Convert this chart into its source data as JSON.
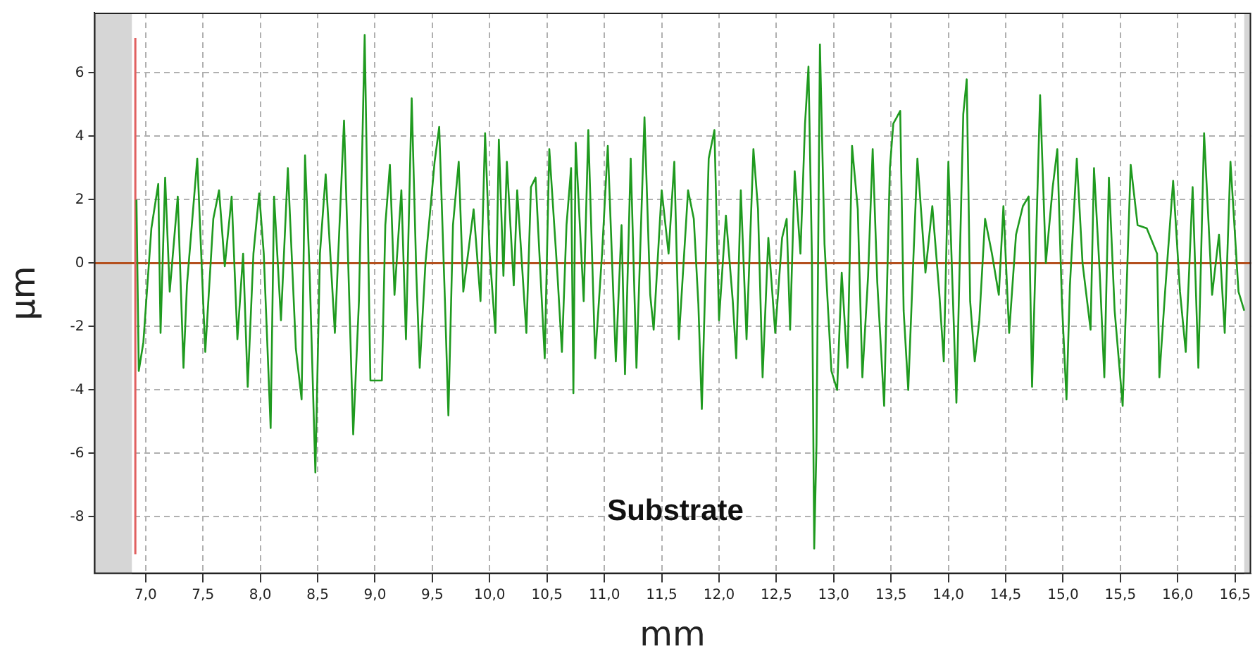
{
  "chart_data": {
    "type": "line",
    "xlabel": "mm",
    "ylabel": "µm",
    "annotations": [
      "Substrate"
    ],
    "xlim": [
      6.55,
      16.64
    ],
    "ylim": [
      -9.8,
      7.9
    ],
    "xticks": [
      {
        "value": 7,
        "label": "7,0"
      },
      {
        "value": 7.5,
        "label": "7,5"
      },
      {
        "value": 8,
        "label": "8,0"
      },
      {
        "value": 8.5,
        "label": "8,5"
      },
      {
        "value": 9,
        "label": "9,0"
      },
      {
        "value": 9.5,
        "label": "9,5"
      },
      {
        "value": 10,
        "label": "10,0"
      },
      {
        "value": 10.5,
        "label": "10,5"
      },
      {
        "value": 11,
        "label": "11,0"
      },
      {
        "value": 11.5,
        "label": "11,5"
      },
      {
        "value": 12,
        "label": "12,0"
      },
      {
        "value": 12.5,
        "label": "12,5"
      },
      {
        "value": 13,
        "label": "13,0"
      },
      {
        "value": 13.5,
        "label": "13,5"
      },
      {
        "value": 14,
        "label": "14,0"
      },
      {
        "value": 14.5,
        "label": "14,5"
      },
      {
        "value": 15,
        "label": "15,0"
      },
      {
        "value": 15.5,
        "label": "15,5"
      },
      {
        "value": 16,
        "label": "16,0"
      },
      {
        "value": 16.5,
        "label": "16,5"
      }
    ],
    "yticks": [
      -8,
      -6,
      -4,
      -2,
      0,
      2,
      4,
      6
    ],
    "grid": true,
    "legend": false,
    "marker": "none",
    "line_style": "solid",
    "ref_lines": [
      {
        "axis": "y",
        "value": 0,
        "color": "#b4501e"
      },
      {
        "axis": "x",
        "value": 6.91,
        "color": "#e06060"
      }
    ],
    "bands": [
      {
        "axis": "x",
        "from": 6.55,
        "to": 6.88,
        "color": "#d6d6d6"
      },
      {
        "axis": "x",
        "from": 16.58,
        "to": 16.64,
        "color": "#d6d6d6"
      }
    ],
    "series": [
      {
        "color": "#1f9a1f",
        "x": [
          6.92,
          6.94,
          6.98,
          7.05,
          7.11,
          7.13,
          7.17,
          7.21,
          7.28,
          7.33,
          7.36,
          7.45,
          7.52,
          7.59,
          7.64,
          7.69,
          7.75,
          7.8,
          7.85,
          7.89,
          7.94,
          7.99,
          8.03,
          8.09,
          8.12,
          8.18,
          8.24,
          8.31,
          8.36,
          8.39,
          8.43,
          8.48,
          8.52,
          8.57,
          8.65,
          8.73,
          8.81,
          8.86,
          8.91,
          8.96,
          9.06,
          9.09,
          9.13,
          9.17,
          9.23,
          9.27,
          9.32,
          9.36,
          9.39,
          9.44,
          9.52,
          9.56,
          9.61,
          9.64,
          9.68,
          9.73,
          9.77,
          9.86,
          9.92,
          9.96,
          10.0,
          10.05,
          10.08,
          10.12,
          10.15,
          10.21,
          10.24,
          10.32,
          10.36,
          10.4,
          10.48,
          10.52,
          10.59,
          10.63,
          10.67,
          10.71,
          10.73,
          10.75,
          10.82,
          10.86,
          10.92,
          10.98,
          11.03,
          11.1,
          11.15,
          11.18,
          11.23,
          11.28,
          11.35,
          11.4,
          11.43,
          11.5,
          11.56,
          11.61,
          11.65,
          11.73,
          11.78,
          11.82,
          11.85,
          11.91,
          11.96,
          12.0,
          12.06,
          12.12,
          12.15,
          12.19,
          12.24,
          12.3,
          12.34,
          12.38,
          12.43,
          12.49,
          12.55,
          12.59,
          12.62,
          12.66,
          12.71,
          12.75,
          12.78,
          12.81,
          12.83,
          12.85,
          12.88,
          12.92,
          12.98,
          13.03,
          13.07,
          13.12,
          13.16,
          13.21,
          13.25,
          13.3,
          13.34,
          13.38,
          13.44,
          13.49,
          13.52,
          13.58,
          13.61,
          13.65,
          13.69,
          13.73,
          13.8,
          13.86,
          13.92,
          13.96,
          14.0,
          14.07,
          14.13,
          14.16,
          14.19,
          14.23,
          14.27,
          14.32,
          14.38,
          14.44,
          14.48,
          14.53,
          14.59,
          14.65,
          14.7,
          14.73,
          14.8,
          14.85,
          14.91,
          14.95,
          14.99,
          15.03,
          15.06,
          15.12,
          15.17,
          15.24,
          15.27,
          15.32,
          15.36,
          15.4,
          15.45,
          15.52,
          15.59,
          15.65,
          15.73,
          15.82,
          15.84,
          15.89,
          15.96,
          16.02,
          16.07,
          16.13,
          16.18,
          16.23,
          16.3,
          16.36,
          16.41,
          16.46,
          16.53,
          16.58
        ],
        "values": [
          2.0,
          -3.4,
          -2.5,
          1.1,
          2.5,
          -2.2,
          2.7,
          -0.9,
          2.1,
          -3.3,
          -0.7,
          3.3,
          -2.8,
          1.4,
          2.3,
          -0.1,
          2.1,
          -2.4,
          0.3,
          -3.9,
          0.3,
          2.2,
          0.3,
          -5.2,
          2.1,
          -1.8,
          3.0,
          -2.7,
          -4.3,
          3.4,
          -0.3,
          -6.6,
          0.3,
          2.8,
          -2.2,
          4.5,
          -5.4,
          -1.2,
          7.2,
          -3.7,
          -3.7,
          1.2,
          3.1,
          -1.0,
          2.3,
          -2.4,
          5.2,
          -0.3,
          -3.3,
          0.0,
          3.2,
          4.3,
          -1.2,
          -4.8,
          1.2,
          3.2,
          -0.9,
          1.7,
          -1.2,
          4.1,
          0.3,
          -2.2,
          3.9,
          -0.4,
          3.2,
          -0.7,
          2.3,
          -2.2,
          2.4,
          2.7,
          -3.0,
          3.6,
          -0.3,
          -2.8,
          1.2,
          3.0,
          -4.1,
          3.8,
          -1.2,
          4.2,
          -3.0,
          0.3,
          3.7,
          -3.1,
          1.2,
          -3.5,
          3.3,
          -3.3,
          4.6,
          -1.0,
          -2.1,
          2.3,
          0.3,
          3.2,
          -2.4,
          2.3,
          1.4,
          -1.3,
          -4.6,
          3.3,
          4.2,
          -1.8,
          1.5,
          -1.2,
          -3.0,
          2.3,
          -2.4,
          3.6,
          1.7,
          -3.6,
          0.8,
          -2.2,
          0.8,
          1.4,
          -2.1,
          2.9,
          0.3,
          4.4,
          6.2,
          0.2,
          -9.0,
          -5.7,
          6.9,
          0.6,
          -3.4,
          -4.0,
          -0.3,
          -3.3,
          3.7,
          1.7,
          -3.6,
          -0.4,
          3.6,
          -0.6,
          -4.5,
          3.0,
          4.4,
          4.8,
          -1.5,
          -4.0,
          -0.3,
          3.3,
          -0.3,
          1.8,
          -0.9,
          -3.1,
          3.2,
          -4.4,
          4.7,
          5.8,
          -1.2,
          -3.1,
          -1.8,
          1.4,
          0.3,
          -1.0,
          1.8,
          -2.2,
          0.9,
          1.8,
          2.1,
          -3.9,
          5.3,
          0.0,
          2.4,
          3.6,
          -1.2,
          -4.3,
          -0.7,
          3.3,
          0.0,
          -2.1,
          3.0,
          -0.3,
          -3.6,
          2.7,
          -1.5,
          -4.5,
          3.1,
          1.2,
          1.1,
          0.3,
          -3.6,
          -0.9,
          2.6,
          -0.9,
          -2.8,
          2.4,
          -3.3,
          4.1,
          -1.0,
          0.9,
          -2.2,
          3.2,
          -0.9,
          -1.5
        ]
      }
    ]
  }
}
